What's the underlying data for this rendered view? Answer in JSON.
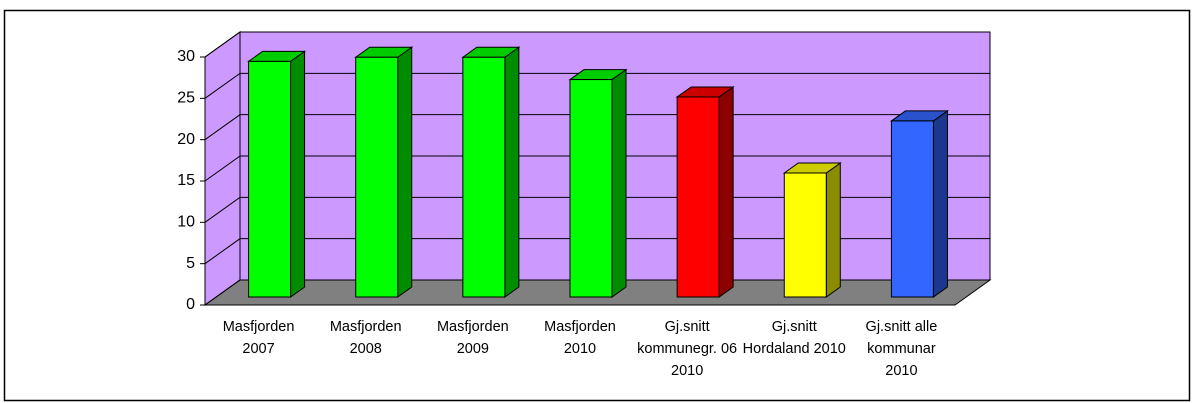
{
  "chart_data": {
    "type": "bar3d",
    "categories": [
      "Masfjorden 2007",
      "Masfjorden 2008",
      "Masfjorden 2009",
      "Masfjorden 2010",
      "Gj.snitt kommunegr. 06 2010",
      "Gj.snitt Hordaland 2010",
      "Gj.snitt alle kommunar 2010"
    ],
    "values": [
      28.5,
      29,
      29,
      26.3,
      24.2,
      15,
      21.3
    ],
    "colors": [
      "#00ff00",
      "#00ff00",
      "#00ff00",
      "#00ff00",
      "#ff0000",
      "#ffff00",
      "#3366ff"
    ],
    "ylim": [
      0,
      30
    ],
    "yticks": [
      0,
      5,
      10,
      15,
      20,
      25,
      30
    ],
    "grid": true,
    "wall_color": "#cc99ff",
    "floor_color": "#808080"
  }
}
